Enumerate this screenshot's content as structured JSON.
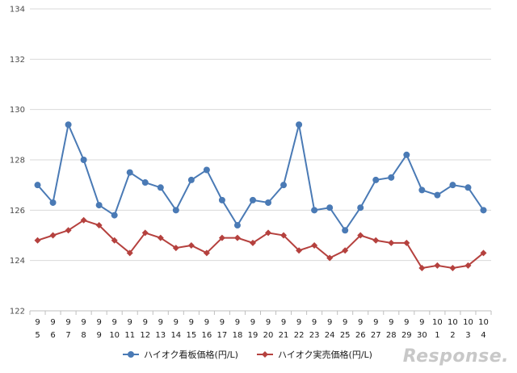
{
  "chart_data": {
    "type": "line",
    "title": "",
    "xlabel": "",
    "ylabel": "",
    "ylim": [
      122,
      134
    ],
    "yticks": [
      122,
      124,
      126,
      128,
      130,
      132,
      134
    ],
    "grid": true,
    "legend_position": "bottom",
    "categories": [
      [
        "9",
        "5"
      ],
      [
        "9",
        "6"
      ],
      [
        "9",
        "7"
      ],
      [
        "9",
        "8"
      ],
      [
        "9",
        "9"
      ],
      [
        "9",
        "10"
      ],
      [
        "9",
        "11"
      ],
      [
        "9",
        "12"
      ],
      [
        "9",
        "13"
      ],
      [
        "9",
        "14"
      ],
      [
        "9",
        "15"
      ],
      [
        "9",
        "16"
      ],
      [
        "9",
        "17"
      ],
      [
        "9",
        "18"
      ],
      [
        "9",
        "19"
      ],
      [
        "9",
        "20"
      ],
      [
        "9",
        "21"
      ],
      [
        "9",
        "22"
      ],
      [
        "9",
        "23"
      ],
      [
        "9",
        "24"
      ],
      [
        "9",
        "25"
      ],
      [
        "9",
        "26"
      ],
      [
        "9",
        "27"
      ],
      [
        "9",
        "28"
      ],
      [
        "9",
        "29"
      ],
      [
        "9",
        "30"
      ],
      [
        "10",
        "1"
      ],
      [
        "10",
        "2"
      ],
      [
        "10",
        "3"
      ],
      [
        "10",
        "4"
      ]
    ],
    "series": [
      {
        "name": "ハイオク看板価格(円/L)",
        "color": "#4a7ab5",
        "marker": "circle",
        "values": [
          127.0,
          126.3,
          129.4,
          128.0,
          126.2,
          125.8,
          127.5,
          127.1,
          126.9,
          126.0,
          127.2,
          127.6,
          126.4,
          125.4,
          126.4,
          126.3,
          127.0,
          129.4,
          126.0,
          126.1,
          125.2,
          126.1,
          127.2,
          127.3,
          128.2,
          126.8,
          126.6,
          127.0,
          126.9,
          126.0
        ]
      },
      {
        "name": "ハイオク実売価格(円/L)",
        "color": "#b5413e",
        "marker": "diamond",
        "values": [
          124.8,
          125.0,
          125.2,
          125.6,
          125.4,
          124.8,
          124.3,
          125.1,
          124.9,
          124.5,
          124.6,
          124.3,
          124.9,
          124.9,
          124.7,
          125.1,
          125.0,
          124.4,
          124.6,
          124.1,
          124.4,
          125.0,
          124.8,
          124.7,
          124.7,
          123.7,
          123.8,
          123.7,
          123.8,
          124.3
        ]
      }
    ]
  },
  "watermark": "Response."
}
